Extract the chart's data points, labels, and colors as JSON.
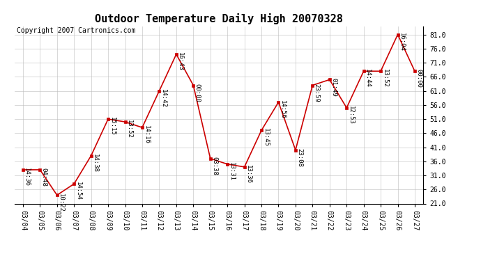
{
  "title": "Outdoor Temperature Daily High 20070328",
  "copyright": "Copyright 2007 Cartronics.com",
  "dates": [
    "03/04",
    "03/05",
    "03/06",
    "03/07",
    "03/08",
    "03/09",
    "03/10",
    "03/11",
    "03/12",
    "03/13",
    "03/14",
    "03/15",
    "03/16",
    "03/17",
    "03/18",
    "03/19",
    "03/20",
    "03/21",
    "03/22",
    "03/23",
    "03/24",
    "03/25",
    "03/26",
    "03/27"
  ],
  "values": [
    33,
    33,
    24,
    28,
    38,
    51,
    50,
    48,
    61,
    74,
    63,
    37,
    35,
    34,
    47,
    57,
    40,
    63,
    65,
    55,
    68,
    68,
    81,
    68
  ],
  "labels": [
    "14:36",
    "04:48",
    "10:22",
    "14:54",
    "14:38",
    "15:15",
    "13:52",
    "14:16",
    "14:42",
    "16:43",
    "00:00",
    "03:38",
    "13:31",
    "13:36",
    "13:45",
    "14:56",
    "23:08",
    "23:59",
    "01:49",
    "12:53",
    "14:44",
    "13:52",
    "16:04",
    "00:00"
  ],
  "line_color": "#cc0000",
  "marker_color": "#cc0000",
  "bg_color": "#ffffff",
  "grid_color": "#bbbbbb",
  "ylim": [
    21.0,
    84.0
  ],
  "yticks": [
    21.0,
    26.0,
    31.0,
    36.0,
    41.0,
    46.0,
    51.0,
    56.0,
    61.0,
    66.0,
    71.0,
    76.0,
    81.0
  ],
  "title_fontsize": 11,
  "label_fontsize": 6.5,
  "copyright_fontsize": 7,
  "tick_fontsize": 7
}
